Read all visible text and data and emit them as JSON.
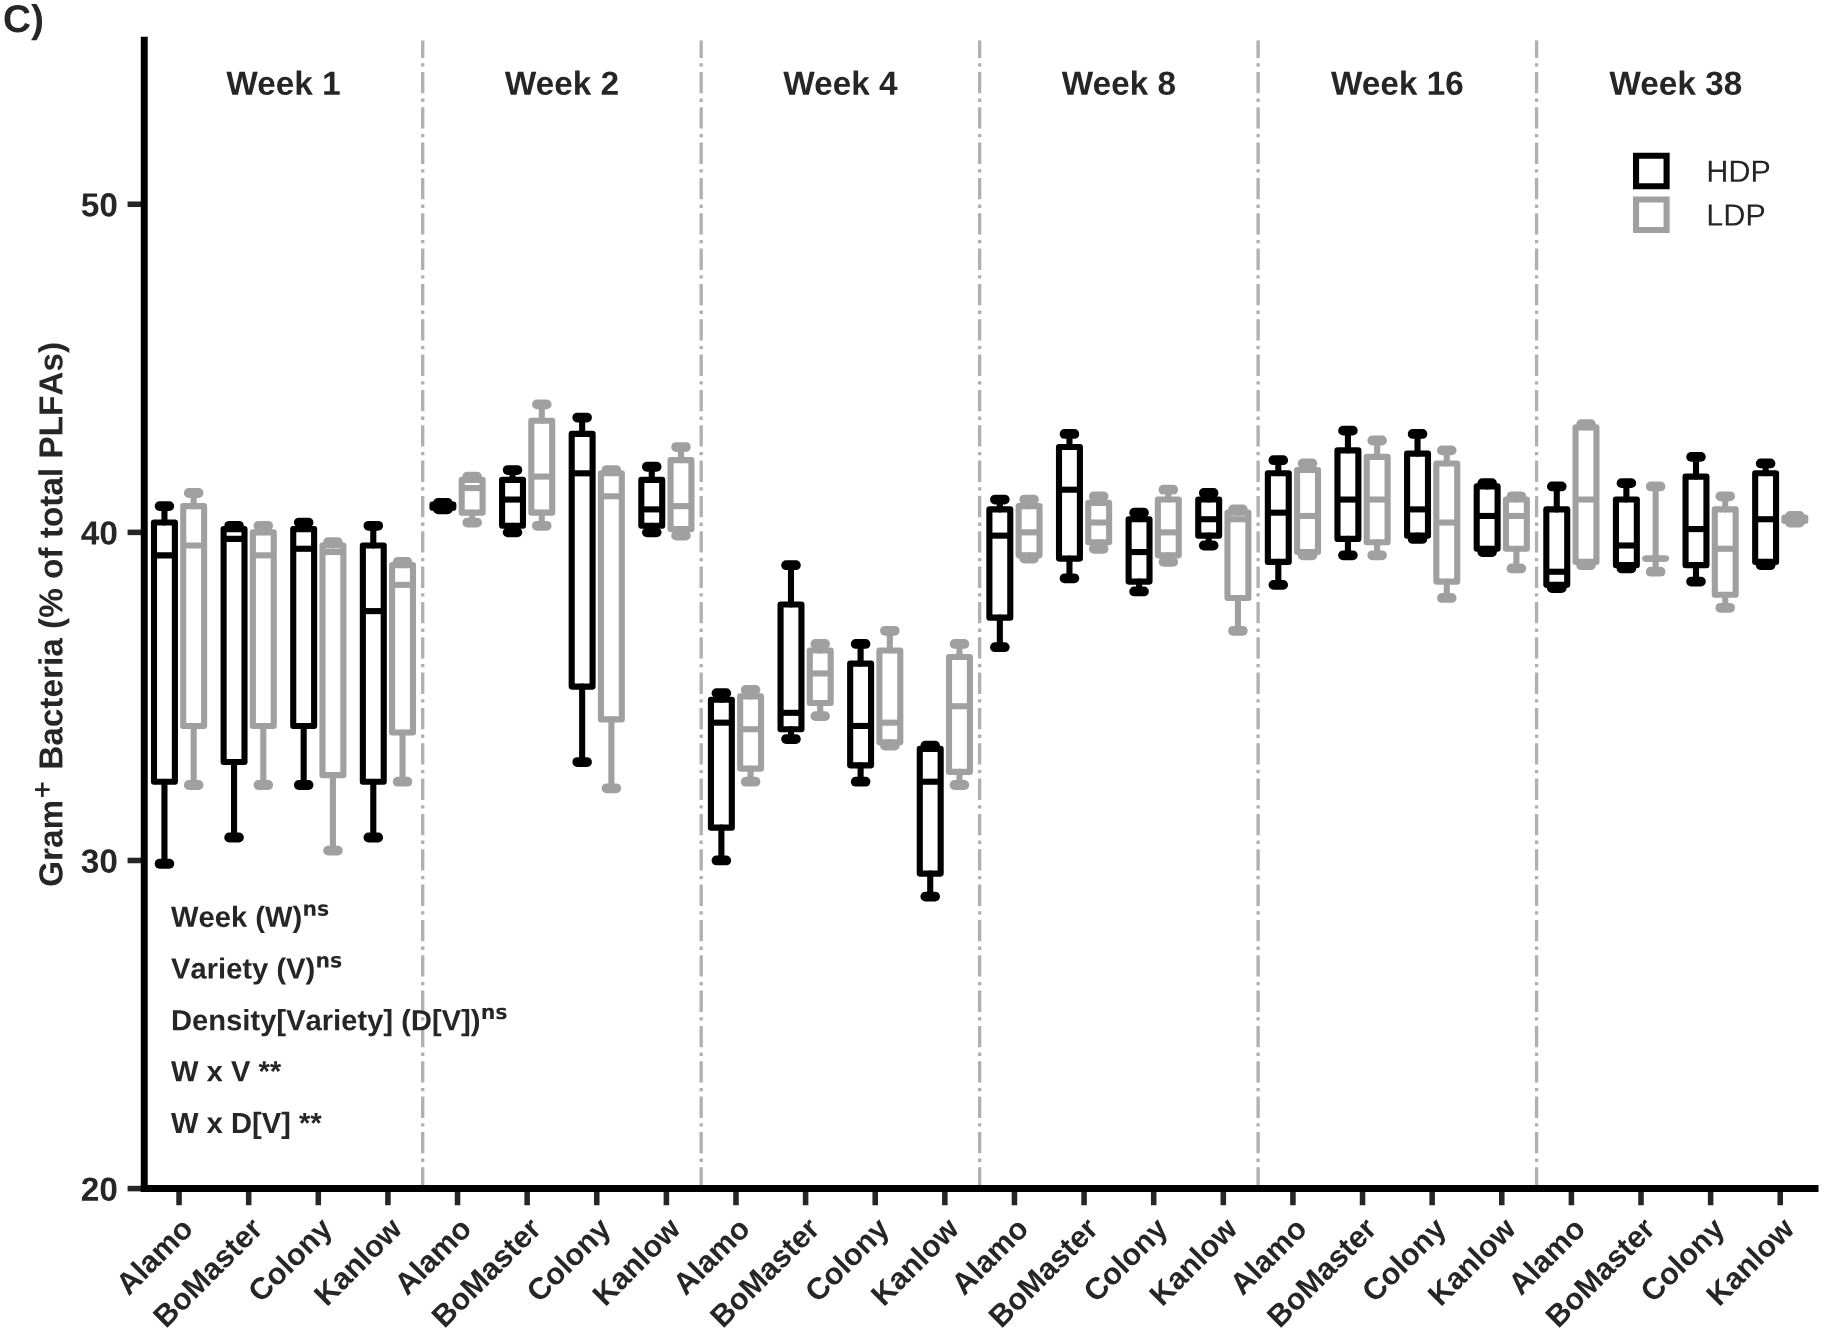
{
  "chart_data": {
    "type": "box",
    "ylabel": "Gram$^{+}$ Bacteria (% of total PLFAs)",
    "categories": [
      "Alamo",
      "BoMaster",
      "Colony",
      "Kanlow",
      "Alamo",
      "BoMaster",
      "Colony",
      "Kanlow",
      "Alamo",
      "BoMaster",
      "Colony",
      "Kanlow",
      "Alamo",
      "BoMaster",
      "Colony",
      "Kanlow",
      "Alamo",
      "BoMaster",
      "Colony",
      "Kanlow",
      "Alamo",
      "BoMaster",
      "Colony",
      "Kanlow"
    ],
    "ylim": [
      20,
      55
    ],
    "yticks": [
      20,
      30,
      40,
      50
    ],
    "grid": false,
    "legend": "top right",
    "annotations": [
      "C)",
      "Week 1",
      "Week 2",
      "Week 4",
      "Week 8",
      "Week 16",
      "Week 38",
      "Week (W)$^{ns}$",
      "Variety (V)$^{ns}$",
      "Density[Variety] (D[V])$^{ns}$",
      "W x V **",
      "W x D[V] **"
    ],
    "series": [
      {
        "name": "HDP",
        "color": "#000000",
        "boxes": [
          {
            "low": 29.9,
            "q1": 32.4,
            "median": 39.3,
            "q3": 40.3,
            "high": 40.8
          },
          {
            "low": 30.7,
            "q1": 33.0,
            "median": 39.8,
            "q3": 40.1,
            "high": 40.2
          },
          {
            "low": 32.3,
            "q1": 34.1,
            "median": 39.5,
            "q3": 40.1,
            "high": 40.3
          },
          {
            "low": 30.7,
            "q1": 32.4,
            "median": 37.6,
            "q3": 39.6,
            "high": 40.2
          },
          {
            "low": 40.7,
            "q1": 40.75,
            "median": 40.8,
            "q3": 40.85,
            "high": 40.9
          },
          {
            "low": 40.0,
            "q1": 40.2,
            "median": 41.0,
            "q3": 41.6,
            "high": 41.9
          },
          {
            "low": 33.0,
            "q1": 35.3,
            "median": 41.8,
            "q3": 43.0,
            "high": 43.5
          },
          {
            "low": 40.0,
            "q1": 40.2,
            "median": 40.7,
            "q3": 41.6,
            "high": 42.0
          },
          {
            "low": 30.0,
            "q1": 31.0,
            "median": 34.2,
            "q3": 34.9,
            "high": 35.1
          },
          {
            "low": 33.7,
            "q1": 34.0,
            "median": 34.5,
            "q3": 37.8,
            "high": 39.0
          },
          {
            "low": 32.4,
            "q1": 32.9,
            "median": 34.1,
            "q3": 36.0,
            "high": 36.6
          },
          {
            "low": 28.9,
            "q1": 29.6,
            "median": 32.4,
            "q3": 33.4,
            "high": 33.5
          },
          {
            "low": 36.5,
            "q1": 37.4,
            "median": 39.9,
            "q3": 40.7,
            "high": 41.0
          },
          {
            "low": 38.6,
            "q1": 39.2,
            "median": 41.3,
            "q3": 42.6,
            "high": 43.0
          },
          {
            "low": 38.2,
            "q1": 38.5,
            "median": 39.4,
            "q3": 40.4,
            "high": 40.6
          },
          {
            "low": 39.6,
            "q1": 39.9,
            "median": 40.4,
            "q3": 41.0,
            "high": 41.2
          },
          {
            "low": 38.4,
            "q1": 39.1,
            "median": 40.6,
            "q3": 41.8,
            "high": 42.2
          },
          {
            "low": 39.3,
            "q1": 39.8,
            "median": 41.0,
            "q3": 42.5,
            "high": 43.1
          },
          {
            "low": 39.8,
            "q1": 39.9,
            "median": 40.7,
            "q3": 42.4,
            "high": 43.0
          },
          {
            "low": 39.4,
            "q1": 39.5,
            "median": 40.5,
            "q3": 41.4,
            "high": 41.5
          },
          {
            "low": 38.3,
            "q1": 38.4,
            "median": 38.8,
            "q3": 40.7,
            "high": 41.4
          },
          {
            "low": 38.9,
            "q1": 39.0,
            "median": 39.6,
            "q3": 41.0,
            "high": 41.5
          },
          {
            "low": 38.5,
            "q1": 39.0,
            "median": 40.1,
            "q3": 41.7,
            "high": 42.3
          },
          {
            "low": 39.0,
            "q1": 39.1,
            "median": 40.4,
            "q3": 41.8,
            "high": 42.1
          }
        ]
      },
      {
        "name": "LDP",
        "color": "#a0a0a0",
        "boxes": [
          {
            "low": 32.3,
            "q1": 34.1,
            "median": 39.6,
            "q3": 40.8,
            "high": 41.2
          },
          {
            "low": 32.3,
            "q1": 34.1,
            "median": 39.3,
            "q3": 40.0,
            "high": 40.2
          },
          {
            "low": 30.3,
            "q1": 32.6,
            "median": 39.4,
            "q3": 39.6,
            "high": 39.7
          },
          {
            "low": 32.4,
            "q1": 33.9,
            "median": 38.4,
            "q3": 39.0,
            "high": 39.1
          },
          {
            "low": 40.3,
            "q1": 40.6,
            "median": 41.35,
            "q3": 41.6,
            "high": 41.7
          },
          {
            "low": 40.2,
            "q1": 40.6,
            "median": 41.7,
            "q3": 43.4,
            "high": 43.9
          },
          {
            "low": 32.2,
            "q1": 34.3,
            "median": 41.1,
            "q3": 41.8,
            "high": 41.9
          },
          {
            "low": 39.9,
            "q1": 40.1,
            "median": 40.8,
            "q3": 42.2,
            "high": 42.6
          },
          {
            "low": 32.4,
            "q1": 32.8,
            "median": 34.0,
            "q3": 35.0,
            "high": 35.2
          },
          {
            "low": 34.4,
            "q1": 34.8,
            "median": 35.7,
            "q3": 36.4,
            "high": 36.6
          },
          {
            "low": 33.5,
            "q1": 33.6,
            "median": 34.2,
            "q3": 36.4,
            "high": 37.0
          },
          {
            "low": 32.3,
            "q1": 32.7,
            "median": 34.7,
            "q3": 36.2,
            "high": 36.6
          },
          {
            "low": 39.2,
            "q1": 39.3,
            "median": 40.0,
            "q3": 40.8,
            "high": 41.0
          },
          {
            "low": 39.5,
            "q1": 39.7,
            "median": 40.3,
            "q3": 40.9,
            "high": 41.1
          },
          {
            "low": 39.1,
            "q1": 39.3,
            "median": 40.0,
            "q3": 41.0,
            "high": 41.3
          },
          {
            "low": 37.0,
            "q1": 38.0,
            "median": 40.4,
            "q3": 40.6,
            "high": 40.7
          },
          {
            "low": 39.3,
            "q1": 39.4,
            "median": 40.5,
            "q3": 41.9,
            "high": 42.1
          },
          {
            "low": 39.3,
            "q1": 39.7,
            "median": 41.0,
            "q3": 42.3,
            "high": 42.8
          },
          {
            "low": 38.0,
            "q1": 38.5,
            "median": 40.3,
            "q3": 42.1,
            "high": 42.5
          },
          {
            "low": 38.9,
            "q1": 39.5,
            "median": 40.5,
            "q3": 41.0,
            "high": 41.1
          },
          {
            "low": 39.0,
            "q1": 39.1,
            "median": 41.0,
            "q3": 43.2,
            "high": 43.3
          },
          {
            "low": 38.8,
            "q1": 39.2,
            "median": 39.2,
            "q3": 39.2,
            "high": 41.4
          },
          {
            "low": 37.7,
            "q1": 38.1,
            "median": 39.5,
            "q3": 40.7,
            "high": 41.1
          },
          {
            "low": 40.3,
            "q1": 40.35,
            "median": 40.4,
            "q3": 40.45,
            "high": 40.5
          }
        ]
      }
    ]
  }
}
